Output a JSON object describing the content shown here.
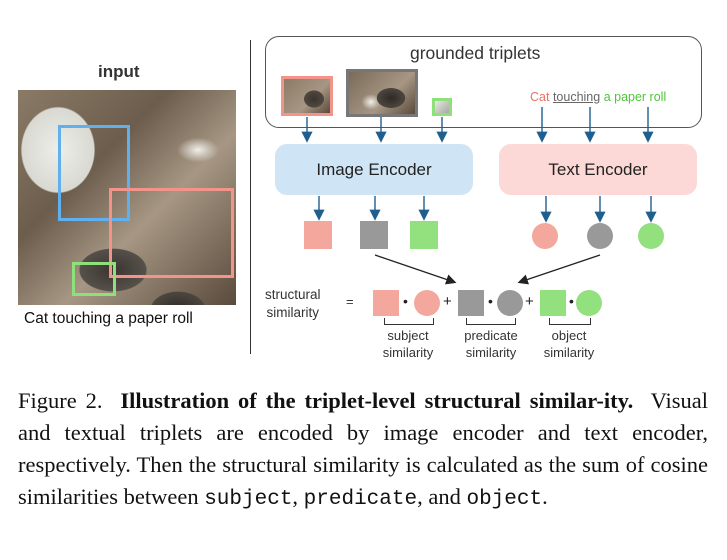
{
  "left_panel": {
    "title": "input",
    "caption": "Cat touching a paper roll"
  },
  "triplets_box": {
    "title": "grounded triplets",
    "text_triplet": {
      "subject": "Cat",
      "predicate": "touching",
      "object": "a paper roll"
    }
  },
  "encoders": {
    "image": "Image Encoder",
    "text": "Text Encoder"
  },
  "similarity": {
    "label_line1": "structural",
    "label_line2": "similarity",
    "equals": "=",
    "plus": "+",
    "dot": "•",
    "subject_line1": "subject",
    "subject_line2": "similarity",
    "predicate_line1": "predicate",
    "predicate_line2": "similarity",
    "object_line1": "object",
    "object_line2": "similarity"
  },
  "colors": {
    "subject": "#f4a79c",
    "predicate": "#999999",
    "object": "#93e07f",
    "subject_box": "#f3948a",
    "predicate_box": "#777777",
    "object_box": "#8ee07a",
    "image_encoder_bg": "#cfe5f6",
    "text_encoder_bg": "#fcd9d6",
    "arrow": "#1f5f8f",
    "blue_bbox": "#5fb0ef"
  },
  "figure_caption": {
    "label": "Figure 2.",
    "title": "Illustration of the triplet-level structural similar-ity.",
    "body_1": "Visual and textual triplets are encoded by image encoder and text encoder, respectively. Then the structural similarity is calculated as the sum of cosine similarities between",
    "code_subject": "subject",
    "comma": ",",
    "code_predicate": "predicate",
    "and": ", and",
    "code_object": "object",
    "period": "."
  }
}
